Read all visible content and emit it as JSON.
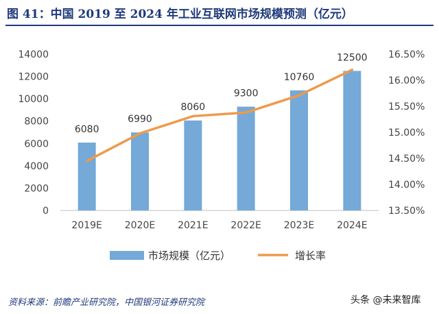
{
  "header": {
    "title": "图 41：中国 2019 至 2024 年工业互联网市场规模预测（亿元）"
  },
  "footer": {
    "source": "资料来源：前瞻产业研究院，中国银河证券研究院",
    "watermark": "头条 @未来智库"
  },
  "chart_data": {
    "type": "bar",
    "categories": [
      "2019E",
      "2020E",
      "2021E",
      "2022E",
      "2023E",
      "2024E"
    ],
    "series": [
      {
        "name": "市场规模（亿元）",
        "type": "bar",
        "axis": "left",
        "color": "#74a9d8",
        "values": [
          6080,
          6990,
          8060,
          9300,
          10760,
          12500
        ]
      },
      {
        "name": "增长率",
        "type": "line",
        "axis": "right",
        "color": "#ee9a4c",
        "values": [
          14.45,
          14.98,
          15.31,
          15.38,
          15.71,
          16.2
        ]
      }
    ],
    "y_left": {
      "min": 0,
      "max": 14000,
      "ticks": [
        "0",
        "2000",
        "4000",
        "6000",
        "8000",
        "10000",
        "12000",
        "14000"
      ]
    },
    "y_right": {
      "min": 13.5,
      "max": 16.5,
      "ticks": [
        "13.50%",
        "14.00%",
        "14.50%",
        "15.00%",
        "15.50%",
        "16.00%",
        "16.50%"
      ]
    },
    "grid": false,
    "legend": "bottom"
  }
}
